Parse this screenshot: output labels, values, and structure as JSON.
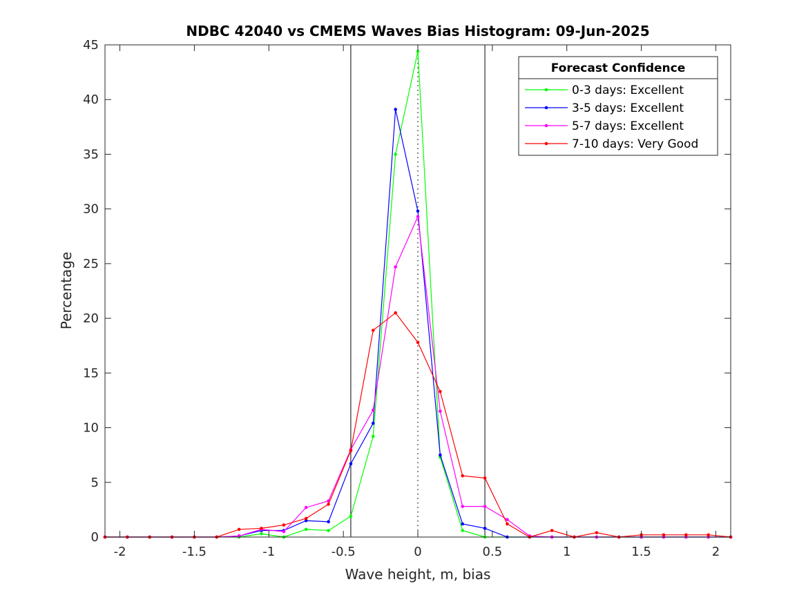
{
  "chart_data": {
    "type": "line",
    "title": "NDBC 42040 vs CMEMS Waves Bias Histogram: 09-Jun-2025",
    "xlabel": "Wave height, m, bias",
    "ylabel": "Percentage",
    "xlim": [
      -2.1,
      2.1
    ],
    "ylim": [
      0,
      45
    ],
    "xticks": [
      -2,
      -1.5,
      -1,
      -0.5,
      0,
      0.5,
      1,
      1.5,
      2
    ],
    "xtick_labels": [
      "-2",
      "-1.5",
      "-1",
      "-0.5",
      "0",
      "0.5",
      "1",
      "1.5",
      "2"
    ],
    "yticks": [
      0,
      5,
      10,
      15,
      20,
      25,
      30,
      35,
      40,
      45
    ],
    "ytick_labels": [
      "0",
      "5",
      "10",
      "15",
      "20",
      "25",
      "30",
      "35",
      "40",
      "45"
    ],
    "vertical_lines": [
      -0.45,
      0.45
    ],
    "zero_line": 0,
    "legend": {
      "title": "Forecast Confidence",
      "placement": "top-right"
    },
    "x": [
      -2.1,
      -1.95,
      -1.8,
      -1.65,
      -1.5,
      -1.35,
      -1.2,
      -1.05,
      -0.9,
      -0.75,
      -0.6,
      -0.45,
      -0.3,
      -0.15,
      0,
      0.15,
      0.3,
      0.45,
      0.6,
      0.75,
      0.9,
      1.05,
      1.2,
      1.35,
      1.5,
      1.65,
      1.8,
      1.95,
      2.1
    ],
    "series": [
      {
        "name": "0-3 days: Excellent",
        "color": "#00ff00",
        "values": [
          0,
          0,
          0,
          0,
          0,
          0,
          0,
          0.3,
          0,
          0.7,
          0.6,
          1.9,
          9.2,
          35.0,
          44.4,
          7.3,
          0.6,
          0,
          0,
          0,
          0,
          0,
          0,
          0,
          0,
          0,
          0,
          0,
          0
        ]
      },
      {
        "name": "3-5 days: Excellent",
        "color": "#0000ff",
        "values": [
          0,
          0,
          0,
          0,
          0,
          0,
          0.1,
          0.6,
          0.6,
          1.5,
          1.4,
          6.7,
          10.4,
          39.1,
          29.8,
          7.5,
          1.2,
          0.8,
          0,
          0,
          0,
          0,
          0,
          0,
          0,
          0,
          0,
          0,
          0
        ]
      },
      {
        "name": "5-7 days: Excellent",
        "color": "#ff00ff",
        "values": [
          0,
          0,
          0,
          0,
          0,
          0,
          0.1,
          0.7,
          0.5,
          2.7,
          3.3,
          8.0,
          11.6,
          24.7,
          29.3,
          11.5,
          2.8,
          2.8,
          1.6,
          0.1,
          0,
          0,
          0,
          0,
          0,
          0,
          0,
          0,
          0
        ]
      },
      {
        "name": "7-10 days: Very Good",
        "color": "#ff0000",
        "values": [
          0,
          0,
          0,
          0,
          0,
          0,
          0.7,
          0.8,
          1.1,
          1.7,
          3.0,
          7.9,
          18.9,
          20.5,
          17.8,
          13.3,
          5.6,
          5.4,
          1.2,
          0,
          0.6,
          0,
          0.4,
          0,
          0.2,
          0.2,
          0.2,
          0.2,
          0
        ]
      }
    ]
  }
}
